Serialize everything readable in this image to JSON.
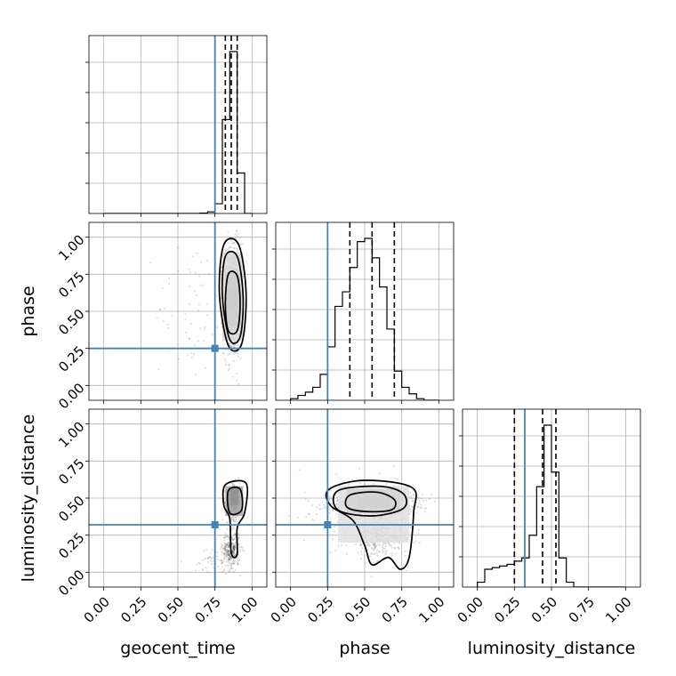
{
  "chart_data": {
    "type": "corner",
    "parameters": [
      "geocent_time",
      "phase",
      "luminosity_distance"
    ],
    "axis_labels": {
      "geocent_time": "geocent_time",
      "phase": "phase",
      "luminosity_distance": "luminosity_distance"
    },
    "range": [
      0.0,
      1.0
    ],
    "xlim": [
      -0.1,
      1.1
    ],
    "ticks": [
      "0.00",
      "0.25",
      "0.50",
      "0.75",
      "1.00"
    ],
    "tick_values": [
      0.0,
      0.25,
      0.5,
      0.75,
      1.0
    ],
    "truths": {
      "geocent_time": 0.75,
      "phase": 0.25,
      "luminosity_distance": 0.32
    },
    "truth_color": "#4682b4",
    "grid": true,
    "quantiles": {
      "geocent_time": [
        0.82,
        0.86,
        0.9
      ],
      "phase": [
        0.4,
        0.55,
        0.7
      ],
      "luminosity_distance": [
        0.25,
        0.44,
        0.53
      ]
    },
    "histograms": {
      "geocent_time": {
        "edges": [
          0.0,
          0.05,
          0.1,
          0.15,
          0.2,
          0.25,
          0.3,
          0.35,
          0.4,
          0.45,
          0.5,
          0.55,
          0.6,
          0.65,
          0.7,
          0.75,
          0.8,
          0.85,
          0.9,
          0.95,
          1.0
        ],
        "counts": [
          0,
          0,
          0,
          0,
          0,
          0,
          0,
          0,
          0,
          0,
          0,
          0,
          0,
          0.002,
          0.01,
          0.06,
          0.58,
          1.0,
          0.25,
          0
        ]
      },
      "phase": {
        "edges": [
          0.0,
          0.05,
          0.1,
          0.15,
          0.2,
          0.25,
          0.3,
          0.35,
          0.4,
          0.45,
          0.5,
          0.55,
          0.6,
          0.65,
          0.7,
          0.75,
          0.8,
          0.85,
          0.9,
          0.95,
          1.0
        ],
        "counts": [
          0.01,
          0.03,
          0.05,
          0.08,
          0.16,
          0.33,
          0.58,
          0.67,
          0.82,
          0.98,
          1.0,
          0.88,
          0.7,
          0.44,
          0.18,
          0.08,
          0.04,
          0.01,
          0,
          0
        ]
      },
      "luminosity_distance": {
        "edges": [
          0.0,
          0.05,
          0.1,
          0.15,
          0.2,
          0.25,
          0.3,
          0.35,
          0.4,
          0.45,
          0.5,
          0.55,
          0.6,
          0.65,
          0.7,
          0.75,
          0.8,
          0.85,
          0.9,
          0.95,
          1.0
        ],
        "counts": [
          0.03,
          0.11,
          0.12,
          0.13,
          0.14,
          0.16,
          0.18,
          0.32,
          0.62,
          1.0,
          0.71,
          0.18,
          0.03,
          0,
          0,
          0,
          0,
          0,
          0,
          0
        ]
      }
    },
    "pairs": [
      {
        "x": "geocent_time",
        "y": "phase",
        "blobs": [
          {
            "cx": 0.87,
            "cy": 0.58,
            "rx": 0.06,
            "ry": 0.38,
            "n": 900
          },
          {
            "cx": 0.6,
            "cy": 0.5,
            "rx": 0.25,
            "ry": 0.5,
            "n": 60
          }
        ],
        "density": [
          {
            "x": 0.84,
            "y": 0.52,
            "w": 0.06,
            "h": 0.12,
            "v": 0.9
          },
          {
            "x": 0.82,
            "y": 0.4,
            "w": 0.1,
            "h": 0.36,
            "v": 0.45
          },
          {
            "x": 0.8,
            "y": 0.3,
            "w": 0.14,
            "h": 0.6,
            "v": 0.15
          }
        ],
        "contours": [
          [
            [
              0.84,
              0.75
            ],
            [
              0.9,
              0.74
            ],
            [
              0.92,
              0.55
            ],
            [
              0.9,
              0.37
            ],
            [
              0.84,
              0.37
            ],
            [
              0.82,
              0.55
            ]
          ],
          [
            [
              0.82,
              0.87
            ],
            [
              0.9,
              0.87
            ],
            [
              0.94,
              0.6
            ],
            [
              0.92,
              0.33
            ],
            [
              0.85,
              0.31
            ],
            [
              0.8,
              0.6
            ]
          ],
          [
            [
              0.81,
              0.95
            ],
            [
              0.91,
              0.95
            ],
            [
              0.96,
              0.62
            ],
            [
              0.93,
              0.28
            ],
            [
              0.84,
              0.27
            ],
            [
              0.78,
              0.62
            ]
          ]
        ]
      },
      {
        "x": "geocent_time",
        "y": "luminosity_distance",
        "blobs": [
          {
            "cx": 0.88,
            "cy": 0.48,
            "rx": 0.05,
            "ry": 0.12,
            "n": 400
          },
          {
            "cx": 0.86,
            "cy": 0.15,
            "rx": 0.06,
            "ry": 0.12,
            "n": 300
          },
          {
            "cx": 0.75,
            "cy": 0.08,
            "rx": 0.15,
            "ry": 0.08,
            "n": 60
          }
        ],
        "density": [
          {
            "x": 0.85,
            "y": 0.45,
            "w": 0.06,
            "h": 0.12,
            "v": 0.9
          },
          {
            "x": 0.82,
            "y": 0.38,
            "w": 0.12,
            "h": 0.2,
            "v": 0.35
          }
        ],
        "contours": [
          [
            [
              0.84,
              0.55
            ],
            [
              0.92,
              0.56
            ],
            [
              0.93,
              0.42
            ],
            [
              0.85,
              0.4
            ]
          ],
          [
            [
              0.82,
              0.59
            ],
            [
              0.96,
              0.6
            ],
            [
              0.95,
              0.4
            ],
            [
              0.9,
              0.3
            ],
            [
              0.9,
              0.12
            ],
            [
              0.86,
              0.13
            ],
            [
              0.85,
              0.36
            ],
            [
              0.81,
              0.45
            ]
          ]
        ]
      },
      {
        "x": "phase",
        "y": "luminosity_distance",
        "blobs": [
          {
            "cx": 0.55,
            "cy": 0.47,
            "rx": 0.28,
            "ry": 0.09,
            "n": 900
          },
          {
            "cx": 0.6,
            "cy": 0.25,
            "rx": 0.22,
            "ry": 0.14,
            "n": 400
          },
          {
            "cx": 0.5,
            "cy": 0.4,
            "rx": 0.45,
            "ry": 0.25,
            "n": 150
          }
        ],
        "density": [
          {
            "x": 0.45,
            "y": 0.44,
            "w": 0.22,
            "h": 0.07,
            "v": 0.95
          },
          {
            "x": 0.38,
            "y": 0.4,
            "w": 0.36,
            "h": 0.16,
            "v": 0.45
          },
          {
            "x": 0.32,
            "y": 0.2,
            "w": 0.48,
            "h": 0.38,
            "v": 0.12
          }
        ],
        "contours": [
          [
            [
              0.4,
              0.52
            ],
            [
              0.58,
              0.54
            ],
            [
              0.7,
              0.49
            ],
            [
              0.68,
              0.42
            ],
            [
              0.5,
              0.41
            ],
            [
              0.38,
              0.44
            ]
          ],
          [
            [
              0.32,
              0.55
            ],
            [
              0.6,
              0.58
            ],
            [
              0.76,
              0.53
            ],
            [
              0.76,
              0.43
            ],
            [
              0.55,
              0.38
            ],
            [
              0.32,
              0.42
            ]
          ],
          [
            [
              0.26,
              0.56
            ],
            [
              0.5,
              0.62
            ],
            [
              0.82,
              0.57
            ],
            [
              0.83,
              0.4
            ],
            [
              0.8,
              0.1
            ],
            [
              0.74,
              0.02
            ],
            [
              0.66,
              0.1
            ],
            [
              0.55,
              0.05
            ],
            [
              0.5,
              0.18
            ],
            [
              0.42,
              0.35
            ],
            [
              0.27,
              0.45
            ]
          ]
        ]
      }
    ]
  }
}
